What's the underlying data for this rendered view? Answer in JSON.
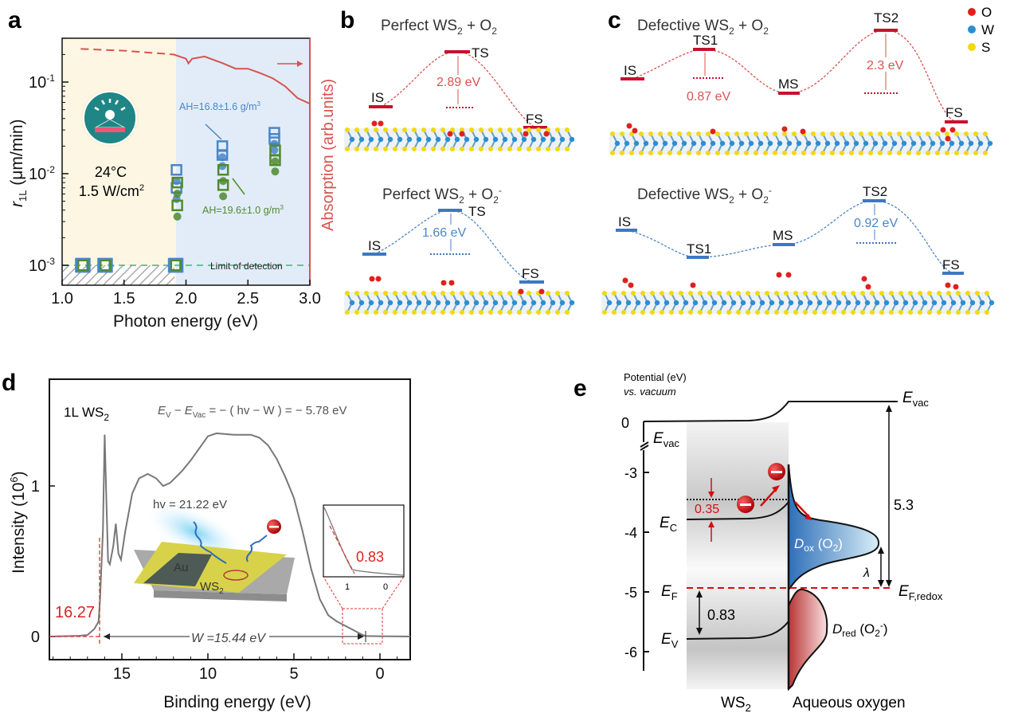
{
  "panels": {
    "a": {
      "label": "a",
      "conditions": {
        "temp": "24°C",
        "power": "1.5 W/cm",
        "power_sup": "2"
      },
      "annot_blue": {
        "text": "AH=16.8±1.6 g/m",
        "sup": "3"
      },
      "annot_green": {
        "text": "AH=19.6±1.0 g/m",
        "sup": "3"
      },
      "lod_label": "Limit of detection",
      "right_axis_label": "Absorption (arb.units)",
      "icon": "sun-spectrum-icon"
    },
    "b": {
      "label": "b",
      "upper": {
        "title": {
          "pre": "Perfect WS",
          "s1": "2",
          "mid": " + O",
          "s2": "2",
          "sup": ""
        },
        "levels": [
          "IS",
          "TS",
          "FS"
        ],
        "barrier": "2.89 eV"
      },
      "lower": {
        "title": {
          "pre": "Perfect WS",
          "s1": "2",
          "mid": " + O",
          "s2": "2",
          "sup": "-"
        },
        "levels": [
          "IS",
          "TS",
          "FS"
        ],
        "barrier": "1.66 eV"
      }
    },
    "c": {
      "label": "c",
      "upper": {
        "title": {
          "pre": "Defective WS",
          "s1": "2",
          "mid": " + O",
          "s2": "2",
          "sup": ""
        },
        "levels": [
          "IS",
          "TS1",
          "MS",
          "TS2",
          "FS"
        ],
        "barrier1": "0.87 eV",
        "barrier2": "2.3 eV"
      },
      "lower": {
        "title": {
          "pre": "Defective WS",
          "s1": "2",
          "mid": " + O",
          "s2": "2",
          "sup": "-"
        },
        "levels": [
          "IS",
          "TS1",
          "MS",
          "TS2",
          "FS"
        ],
        "barrier2": "0.92 eV"
      },
      "legend": [
        {
          "label": "O",
          "color": "#e0201c"
        },
        {
          "label": "W",
          "color": "#2a8fd0"
        },
        {
          "label": "S",
          "color": "#f2d90c"
        }
      ]
    },
    "d": {
      "label": "d",
      "sample": {
        "text": "1L WS",
        "sub": "2"
      },
      "equation": "E_V − E_Vac = − ( hv − W ) = − 5.78 eV",
      "eq_parts": {
        "e1": "E",
        "s1": "V",
        "m1": " − ",
        "e2": "E",
        "s2": "Vac",
        "rest": " = − ( hv − W ) = − 5.78 eV"
      },
      "photon": "hv = 21.22 eV",
      "cutoff": "16.27",
      "work_function": "W =15.44 eV",
      "inset_value": "0.83",
      "inset_ticks": [
        "1",
        "0"
      ],
      "illustration": {
        "au": "Au",
        "ws2": "WS",
        "ws2_sub": "2"
      }
    },
    "e": {
      "label": "e",
      "axis_title": [
        "Potential (eV)",
        "vs. vacuum"
      ],
      "ticks": [
        "0",
        "-3",
        "-4",
        "-5",
        "-6"
      ],
      "labels": {
        "evac_left": {
          "e": "E",
          "s": "vac"
        },
        "evac_right": {
          "e": "E",
          "s": "vac"
        },
        "ec": {
          "e": "E",
          "s": "C"
        },
        "ef": {
          "e": "E",
          "s": "F"
        },
        "ev": {
          "e": "E",
          "s": "V"
        },
        "efredox": {
          "e": "E",
          "s": "F,redox"
        },
        "dox": {
          "d": "D",
          "s": "ox",
          "rest": " (O",
          "s2": "2",
          "end": ")"
        },
        "dred": {
          "d": "D",
          "s": "red",
          "rest": " (O",
          "s2": "2",
          "sup": "-",
          "end": ")"
        },
        "v035": "0.35",
        "v083": "0.83",
        "v53": "5.3",
        "lambda": "λ",
        "ws2": {
          "t": "WS",
          "s": "2"
        },
        "aqueous": "Aqueous oxygen"
      }
    }
  },
  "chart_data": [
    {
      "type": "scatter",
      "panel": "a",
      "xlabel": "Photon energy (eV)",
      "ylabel": "r_1L (μm/min)",
      "ylabel_parts": {
        "r": "r",
        "sub": "1L",
        "rest": " (μm/min)"
      },
      "y2label": "Absorption (arb.units)",
      "xlim": [
        1.0,
        3.0
      ],
      "ylim": [
        0.0006,
        0.3
      ],
      "yscale": "log",
      "xticks": [
        "1.0",
        "1.5",
        "2.0",
        "2.5",
        "3.0"
      ],
      "yticks": [
        {
          "base": "10",
          "exp": "-1",
          "v": 0.1
        },
        {
          "base": "10",
          "exp": "-2",
          "v": 0.01
        },
        {
          "base": "10",
          "exp": "-3",
          "v": 0.001
        }
      ],
      "series": [
        {
          "name": "AH=16.8±1.6 g/m3",
          "color": "#4a86c8",
          "x": [
            1.17,
            1.35,
            1.92,
            1.93,
            1.93,
            2.3,
            2.3,
            2.72,
            2.72
          ],
          "y": [
            0.001,
            0.001,
            0.001,
            0.011,
            0.007,
            0.02,
            0.016,
            0.028,
            0.024
          ]
        },
        {
          "name": "AH=19.6±1.0 g/m3",
          "color": "#4f8a2f",
          "x": [
            1.17,
            1.35,
            1.92,
            1.93,
            1.93,
            2.3,
            2.3,
            2.72,
            2.72
          ],
          "y": [
            0.001,
            0.001,
            0.001,
            0.008,
            0.0045,
            0.011,
            0.0075,
            0.018,
            0.014
          ]
        }
      ],
      "absorption": {
        "color": "#d9534f",
        "x": [
          1.15,
          1.5,
          1.9,
          2.0,
          2.02,
          2.05,
          2.15,
          2.3,
          2.4,
          2.5,
          2.6,
          2.7,
          2.8,
          2.9,
          3.0
        ],
        "y": [
          0.23,
          0.22,
          0.2,
          0.18,
          0.16,
          0.18,
          0.19,
          0.16,
          0.14,
          0.14,
          0.125,
          0.11,
          0.09,
          0.067,
          0.058
        ],
        "dashed_below": 1.9
      },
      "limit_of_detection": 0.001,
      "regions": [
        {
          "from": 1.0,
          "to": 1.92,
          "color": "#fdf6e3"
        },
        {
          "from": 1.92,
          "to": 3.0,
          "color": "#e1ecf8"
        }
      ]
    },
    {
      "type": "line",
      "panel": "d",
      "xlabel": "Binding energy (eV)",
      "ylabel": "Intensity (10^6)",
      "ylabel_parts": {
        "t": "Intensity (10",
        "sup": "6",
        "end": ")"
      },
      "xlim": [
        19.2,
        -1.76
      ],
      "ylim": [
        -0.13,
        1.64
      ],
      "xticks": [
        "15",
        "10",
        "5",
        "0"
      ],
      "yticks": [
        "0",
        "1"
      ],
      "x": [
        19.2,
        17.5,
        17.0,
        16.6,
        16.35,
        16.27,
        16.1,
        16.0,
        15.9,
        15.8,
        15.7,
        15.5,
        15.35,
        15.2,
        15.05,
        14.8,
        14.4,
        14.0,
        13.5,
        13.0,
        12.6,
        12.2,
        11.5,
        11.0,
        10.5,
        10.0,
        9.5,
        8.5,
        7.5,
        7.0,
        6.5,
        6.0,
        5.5,
        5.0,
        4.5,
        4.0,
        3.5,
        3.0,
        2.5,
        2.0,
        1.5,
        1.0,
        0.83,
        0.0,
        -1.76
      ],
      "y": [
        0.0,
        0.005,
        0.01,
        0.05,
        0.1,
        0.25,
        0.7,
        1.34,
        0.9,
        0.5,
        0.48,
        0.6,
        0.75,
        0.55,
        0.51,
        0.7,
        0.95,
        1.05,
        1.08,
        1.05,
        1.0,
        1.02,
        1.1,
        1.17,
        1.25,
        1.33,
        1.35,
        1.34,
        1.34,
        1.32,
        1.27,
        1.18,
        1.06,
        0.92,
        0.7,
        0.45,
        0.25,
        0.14,
        0.1,
        0.07,
        0.04,
        0.01,
        0.003,
        0.002,
        0.0
      ],
      "color": "#777777",
      "annotations": {
        "cutoff": 16.27,
        "vbm": 0.83,
        "work_function": 15.44
      }
    }
  ]
}
